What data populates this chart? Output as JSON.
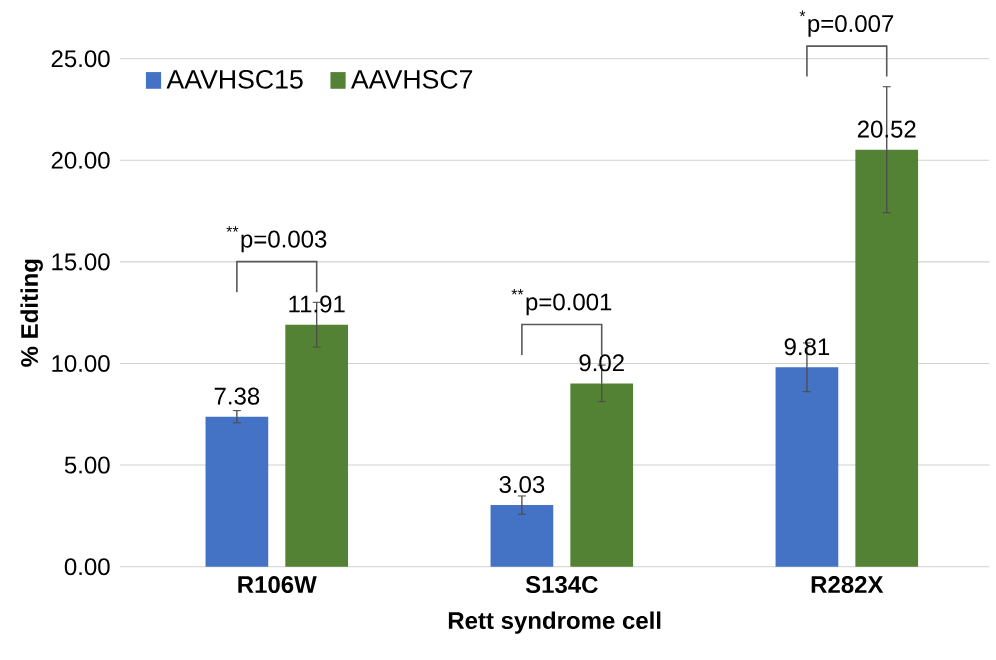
{
  "chart_data": {
    "type": "bar",
    "xlabel": "Rett syndrome cell",
    "ylabel": "% Editing",
    "categories": [
      "R106W",
      "S134C",
      "R282X"
    ],
    "series": [
      {
        "name": "AAVHSC15",
        "color": "#4472c4",
        "values": [
          7.38,
          3.03,
          9.81
        ],
        "errors": [
          0.3,
          0.45,
          1.2
        ]
      },
      {
        "name": "AAVHSC7",
        "color": "#548235",
        "values": [
          11.91,
          9.02,
          20.52
        ],
        "errors": [
          1.1,
          0.9,
          3.1
        ]
      }
    ],
    "ylim": [
      0,
      25
    ],
    "yticks": [
      {
        "value": 0,
        "label": "0.00"
      },
      {
        "value": 5,
        "label": "5.00"
      },
      {
        "value": 10,
        "label": "10.00"
      },
      {
        "value": 15,
        "label": "15.00"
      },
      {
        "value": 20,
        "label": "20.00"
      },
      {
        "value": 25,
        "label": "25.00"
      }
    ],
    "grid": "y",
    "legend": "top left",
    "data_labels": true,
    "annotations": [
      "$^{**}$p=0.003",
      "$^{**}$p=0.001",
      "$^{*}$p=0.007"
    ]
  }
}
